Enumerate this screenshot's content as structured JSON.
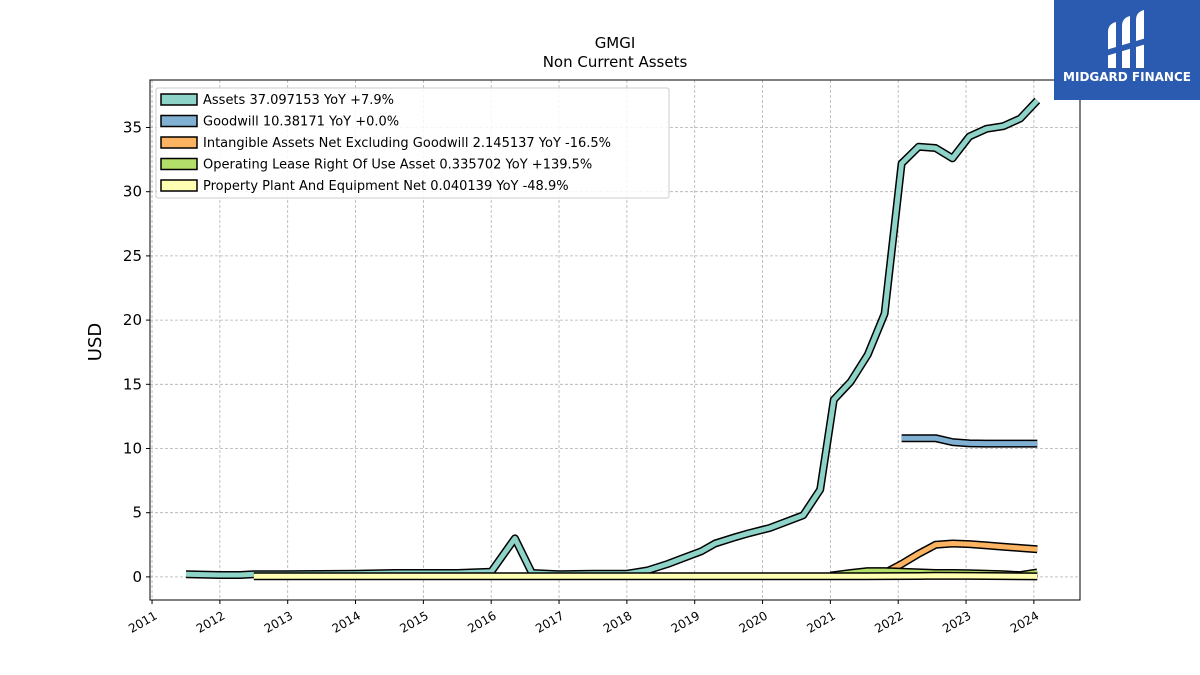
{
  "chart_data": {
    "type": "line",
    "title": "GMGI",
    "subtitle": "Non Current  Assets",
    "ylabel": "USD",
    "xlim": [
      2010.97,
      2024.68
    ],
    "ylim": [
      -1.8,
      38.7
    ],
    "yticks": [
      0,
      5,
      10,
      15,
      20,
      25,
      30,
      35
    ],
    "xticks": [
      2011,
      2012,
      2013,
      2014,
      2015,
      2016,
      2017,
      2018,
      2019,
      2020,
      2021,
      2022,
      2023,
      2024
    ],
    "grid": true,
    "legend_position": "top-left",
    "series": [
      {
        "name": "Assets  37.097153 YoY +7.9%",
        "color": "#8dd3c7",
        "points": [
          [
            2011.5,
            0.2
          ],
          [
            2012.0,
            0.15
          ],
          [
            2012.3,
            0.15
          ],
          [
            2012.5,
            0.2
          ],
          [
            2013.0,
            0.2
          ],
          [
            2014.0,
            0.25
          ],
          [
            2014.6,
            0.3
          ],
          [
            2015.5,
            0.3
          ],
          [
            2016.0,
            0.4
          ],
          [
            2016.35,
            3.0
          ],
          [
            2016.6,
            0.3
          ],
          [
            2017.0,
            0.2
          ],
          [
            2017.5,
            0.25
          ],
          [
            2018.0,
            0.25
          ],
          [
            2018.3,
            0.5
          ],
          [
            2018.6,
            1.0
          ],
          [
            2018.8,
            1.4
          ],
          [
            2019.1,
            2.0
          ],
          [
            2019.3,
            2.6
          ],
          [
            2019.6,
            3.1
          ],
          [
            2019.8,
            3.4
          ],
          [
            2020.1,
            3.8
          ],
          [
            2020.3,
            4.2
          ],
          [
            2020.6,
            4.8
          ],
          [
            2020.85,
            6.8
          ],
          [
            2021.05,
            13.8
          ],
          [
            2021.3,
            15.2
          ],
          [
            2021.55,
            17.3
          ],
          [
            2021.8,
            20.5
          ],
          [
            2022.05,
            32.2
          ],
          [
            2022.3,
            33.5
          ],
          [
            2022.55,
            33.4
          ],
          [
            2022.8,
            32.6
          ],
          [
            2023.05,
            34.3
          ],
          [
            2023.3,
            34.9
          ],
          [
            2023.55,
            35.1
          ],
          [
            2023.8,
            35.7
          ],
          [
            2024.05,
            37.1
          ]
        ]
      },
      {
        "name": "Goodwill  10.38171 YoY +0.0%",
        "color": "#80b1d3",
        "points": [
          [
            2022.05,
            10.8
          ],
          [
            2022.3,
            10.8
          ],
          [
            2022.55,
            10.8
          ],
          [
            2022.8,
            10.5
          ],
          [
            2023.05,
            10.4
          ],
          [
            2023.3,
            10.38
          ],
          [
            2023.55,
            10.38
          ],
          [
            2023.8,
            10.38
          ],
          [
            2024.05,
            10.38
          ]
        ]
      },
      {
        "name": "Intangible Assets Net Excluding Goodwill  2.145137 YoY -16.5%",
        "color": "#fdb462",
        "points": [
          [
            2021.8,
            0.3
          ],
          [
            2022.05,
            1.0
          ],
          [
            2022.3,
            1.8
          ],
          [
            2022.55,
            2.5
          ],
          [
            2022.8,
            2.6
          ],
          [
            2023.05,
            2.55
          ],
          [
            2023.3,
            2.45
          ],
          [
            2023.55,
            2.35
          ],
          [
            2023.8,
            2.25
          ],
          [
            2024.05,
            2.15
          ]
        ]
      },
      {
        "name": "Operating Lease Right Of Use Asset  0.335702 YoY +139.5%",
        "color": "#b3de69",
        "points": [
          [
            2021.0,
            0.1
          ],
          [
            2021.3,
            0.3
          ],
          [
            2021.55,
            0.45
          ],
          [
            2021.8,
            0.45
          ],
          [
            2022.05,
            0.4
          ],
          [
            2022.3,
            0.35
          ],
          [
            2022.55,
            0.3
          ],
          [
            2022.8,
            0.3
          ],
          [
            2023.05,
            0.28
          ],
          [
            2023.3,
            0.25
          ],
          [
            2023.55,
            0.2
          ],
          [
            2023.8,
            0.14
          ],
          [
            2024.05,
            0.34
          ]
        ]
      },
      {
        "name": "Property Plant And Equipment Net  0.040139 YoY -48.9%",
        "color": "#ffffb3",
        "points": [
          [
            2012.5,
            0.05
          ],
          [
            2014.0,
            0.05
          ],
          [
            2016.0,
            0.05
          ],
          [
            2018.0,
            0.05
          ],
          [
            2020.0,
            0.05
          ],
          [
            2021.5,
            0.05
          ],
          [
            2022.3,
            0.07
          ],
          [
            2022.55,
            0.09
          ],
          [
            2023.05,
            0.08
          ],
          [
            2023.55,
            0.06
          ],
          [
            2024.05,
            0.04
          ]
        ]
      }
    ]
  },
  "logo": {
    "text": "MIDGARD FINANCE"
  }
}
